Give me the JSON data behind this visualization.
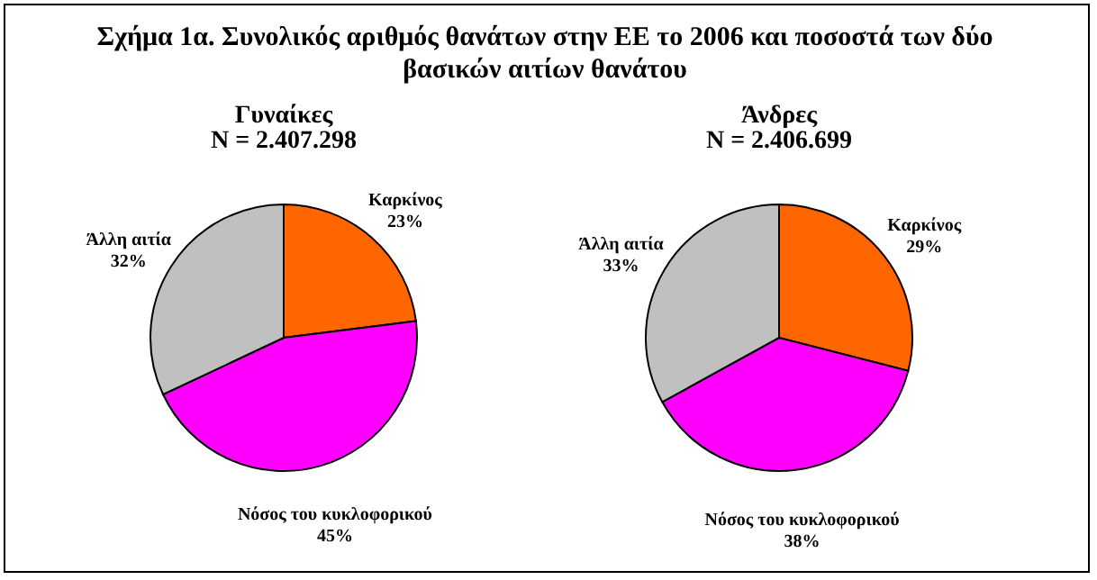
{
  "chart_data": [
    {
      "type": "pie",
      "title": "Γυναίκες",
      "subtitle": "N = 2.407.298",
      "annotations": [
        "Σχήμα 1α. Συνολικός αριθμός θανάτων στην ΕΕ το 2006 και ποσοστά των δύο βασικών αιτίων θανάτου"
      ],
      "categories": [
        "Καρκίνος",
        "Νόσος του κυκλοφορικού",
        "Άλλη αιτία"
      ],
      "values": [
        23,
        45,
        32
      ],
      "value_labels": [
        "23%",
        "45%",
        "32%"
      ],
      "colors": [
        "#ff6600",
        "#ff00ff",
        "#c0c0c0"
      ],
      "legend": false
    },
    {
      "type": "pie",
      "title": "Άνδρες",
      "subtitle": "N = 2.406.699",
      "categories": [
        "Καρκίνος",
        "Νόσος του κυκλοφορικού",
        "Άλλη αιτία"
      ],
      "values": [
        29,
        38,
        33
      ],
      "value_labels": [
        "29%",
        "38%",
        "33%"
      ],
      "colors": [
        "#ff6600",
        "#ff00ff",
        "#c0c0c0"
      ],
      "legend": false
    }
  ]
}
